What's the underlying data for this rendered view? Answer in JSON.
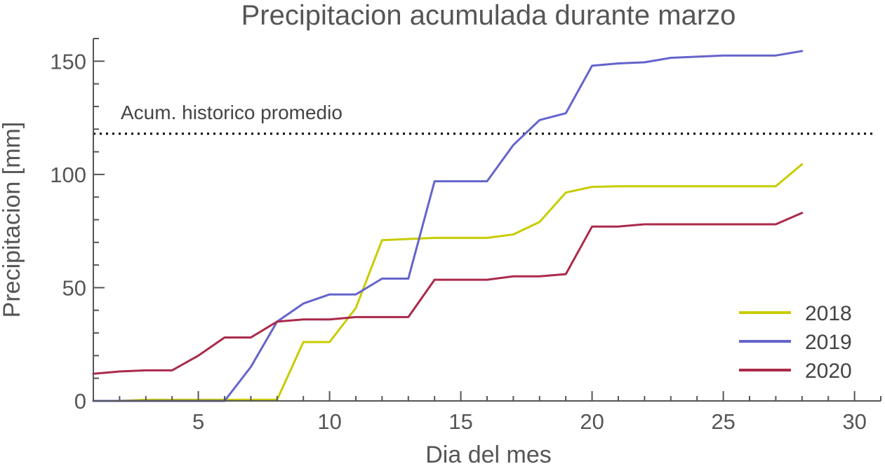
{
  "chart_data": {
    "type": "line",
    "title": "Precipitacion acumulada durante marzo",
    "xlabel": "Dia del mes",
    "ylabel": "Precipitacion [mm]",
    "xlim": [
      1,
      31
    ],
    "ylim": [
      0,
      160
    ],
    "xticks": [
      5,
      10,
      15,
      20,
      25,
      30
    ],
    "yticks": [
      0,
      50,
      100,
      150
    ],
    "grid": false,
    "legend_position": "bottom-right",
    "reference_line": {
      "label": "Acum. historico promedio",
      "value": 118
    },
    "series": [
      {
        "name": "2018",
        "color": "#c8cc00",
        "x": [
          1,
          2,
          3,
          4,
          5,
          6,
          7,
          8,
          9,
          10,
          11,
          12,
          13,
          14,
          15,
          16,
          17,
          18,
          19,
          20,
          21,
          22,
          23,
          24,
          25,
          26,
          27,
          28
        ],
        "values": [
          0,
          0,
          0.5,
          0.5,
          0.5,
          0.5,
          0.5,
          0.5,
          26,
          26,
          41,
          71,
          71.5,
          72,
          72,
          72,
          73.5,
          79,
          92,
          94.5,
          94.8,
          94.8,
          94.8,
          94.8,
          94.8,
          94.8,
          94.8,
          104.5
        ]
      },
      {
        "name": "2019",
        "color": "#6464cc",
        "x": [
          1,
          2,
          3,
          4,
          5,
          6,
          7,
          8,
          9,
          10,
          11,
          12,
          13,
          14,
          15,
          16,
          17,
          18,
          19,
          20,
          21,
          22,
          23,
          24,
          25,
          26,
          27,
          28
        ],
        "values": [
          0,
          0,
          0,
          0,
          0,
          0,
          15,
          35,
          43,
          47,
          47,
          54,
          54,
          97,
          97,
          97,
          113,
          124,
          127,
          148,
          149,
          149.5,
          151.5,
          152,
          152.5,
          152.5,
          152.5,
          154.5
        ]
      },
      {
        "name": "2020",
        "color": "#aa2a4a",
        "x": [
          1,
          2,
          3,
          4,
          5,
          6,
          7,
          8,
          9,
          10,
          11,
          12,
          13,
          14,
          15,
          16,
          17,
          18,
          19,
          20,
          21,
          22,
          23,
          24,
          25,
          26,
          27,
          28
        ],
        "values": [
          12,
          13,
          13.5,
          13.5,
          20,
          28,
          28,
          35,
          36,
          36,
          37,
          37,
          37,
          53.5,
          53.5,
          53.5,
          55,
          55,
          56,
          77,
          77,
          78,
          78,
          78,
          78,
          78,
          78,
          83
        ]
      }
    ]
  }
}
